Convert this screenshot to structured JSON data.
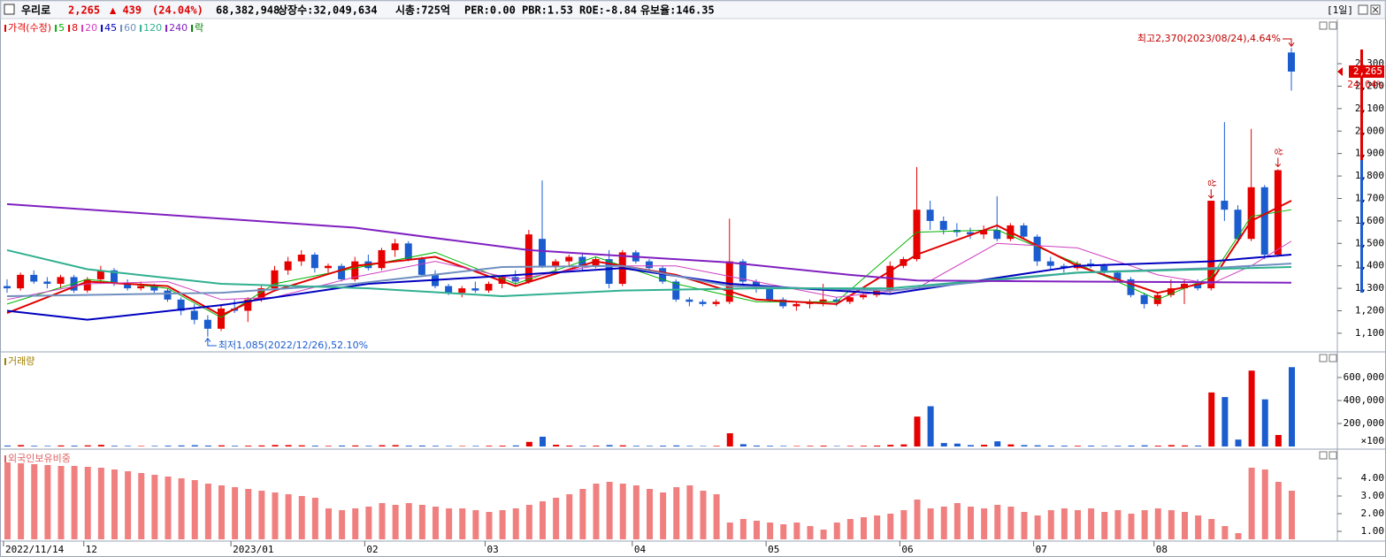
{
  "header": {
    "name": "우리로",
    "price": "2,265",
    "change": "▲ 439",
    "change_pct": "(24.04%)",
    "volume": "68,382,948",
    "listed": "상장수:32,049,634",
    "market_cap": "시총:725억",
    "per": "PER:0.00",
    "pbr": "PBR:1.53",
    "roe": "ROE:-8.84",
    "reserve": "유보율:146.35",
    "period": "[1일]",
    "change_pct_tag": "24.04%"
  },
  "chart_data": [
    {
      "type": "candlestick",
      "price_name": "가격(수정)",
      "rights_label": "락",
      "up_color": "#e60000",
      "down_color": "#1b5ccf",
      "categories": [
        "2022/11/14",
        null,
        null,
        null,
        null,
        null,
        "12",
        null,
        null,
        null,
        null,
        null,
        null,
        null,
        null,
        null,
        null,
        "2023/01",
        null,
        null,
        null,
        null,
        null,
        null,
        null,
        null,
        null,
        "02",
        null,
        null,
        null,
        null,
        null,
        null,
        null,
        null,
        "03",
        null,
        null,
        null,
        null,
        null,
        null,
        null,
        null,
        null,
        null,
        "04",
        null,
        null,
        null,
        null,
        null,
        null,
        null,
        null,
        null,
        "05",
        null,
        null,
        null,
        null,
        null,
        null,
        null,
        null,
        null,
        "06",
        null,
        null,
        null,
        null,
        null,
        null,
        null,
        null,
        null,
        "07",
        null,
        null,
        null,
        null,
        null,
        null,
        null,
        null,
        "08",
        null,
        null,
        null,
        null,
        null,
        null,
        null,
        null,
        null,
        null
      ],
      "candles": [
        [
          1310,
          1340,
          1280,
          1300
        ],
        [
          1300,
          1370,
          1290,
          1360
        ],
        [
          1360,
          1380,
          1320,
          1330
        ],
        [
          1330,
          1350,
          1300,
          1320
        ],
        [
          1320,
          1360,
          1300,
          1350
        ],
        [
          1350,
          1360,
          1280,
          1290
        ],
        [
          1290,
          1350,
          1280,
          1340
        ],
        [
          1340,
          1400,
          1330,
          1380
        ],
        [
          1380,
          1390,
          1310,
          1320
        ],
        [
          1320,
          1340,
          1290,
          1300
        ],
        [
          1300,
          1330,
          1290,
          1310
        ],
        [
          1310,
          1320,
          1280,
          1290
        ],
        [
          1290,
          1300,
          1240,
          1250
        ],
        [
          1250,
          1260,
          1180,
          1200
        ],
        [
          1200,
          1230,
          1140,
          1160
        ],
        [
          1160,
          1180,
          1085,
          1120
        ],
        [
          1120,
          1230,
          1110,
          1210
        ],
        [
          1210,
          1250,
          1190,
          1200
        ],
        [
          1200,
          1260,
          1150,
          1250
        ],
        [
          1250,
          1310,
          1240,
          1300
        ],
        [
          1300,
          1400,
          1290,
          1380
        ],
        [
          1380,
          1440,
          1360,
          1420
        ],
        [
          1420,
          1470,
          1400,
          1450
        ],
        [
          1450,
          1460,
          1370,
          1390
        ],
        [
          1390,
          1410,
          1370,
          1400
        ],
        [
          1400,
          1410,
          1330,
          1340
        ],
        [
          1340,
          1440,
          1330,
          1420
        ],
        [
          1420,
          1450,
          1380,
          1390
        ],
        [
          1390,
          1480,
          1380,
          1470
        ],
        [
          1470,
          1520,
          1440,
          1500
        ],
        [
          1500,
          1510,
          1420,
          1430
        ],
        [
          1430,
          1440,
          1350,
          1360
        ],
        [
          1360,
          1380,
          1300,
          1310
        ],
        [
          1310,
          1320,
          1270,
          1280
        ],
        [
          1280,
          1310,
          1260,
          1300
        ],
        [
          1300,
          1330,
          1280,
          1290
        ],
        [
          1290,
          1330,
          1280,
          1320
        ],
        [
          1320,
          1360,
          1300,
          1350
        ],
        [
          1350,
          1380,
          1310,
          1330
        ],
        [
          1330,
          1560,
          1320,
          1540
        ],
        [
          1520,
          1780,
          1390,
          1400
        ],
        [
          1400,
          1430,
          1360,
          1420
        ],
        [
          1420,
          1450,
          1400,
          1440
        ],
        [
          1440,
          1460,
          1380,
          1400
        ],
        [
          1400,
          1440,
          1390,
          1430
        ],
        [
          1430,
          1470,
          1300,
          1320
        ],
        [
          1320,
          1470,
          1310,
          1460
        ],
        [
          1460,
          1470,
          1410,
          1420
        ],
        [
          1420,
          1430,
          1380,
          1390
        ],
        [
          1390,
          1400,
          1320,
          1330
        ],
        [
          1330,
          1340,
          1240,
          1250
        ],
        [
          1250,
          1260,
          1220,
          1240
        ],
        [
          1240,
          1250,
          1220,
          1230
        ],
        [
          1230,
          1250,
          1220,
          1240
        ],
        [
          1240,
          1610,
          1230,
          1420
        ],
        [
          1420,
          1430,
          1320,
          1330
        ],
        [
          1330,
          1340,
          1280,
          1300
        ],
        [
          1300,
          1310,
          1240,
          1250
        ],
        [
          1250,
          1260,
          1210,
          1220
        ],
        [
          1220,
          1240,
          1200,
          1230
        ],
        [
          1230,
          1250,
          1210,
          1240
        ],
        [
          1240,
          1320,
          1220,
          1250
        ],
        [
          1250,
          1260,
          1220,
          1240
        ],
        [
          1240,
          1270,
          1230,
          1260
        ],
        [
          1260,
          1280,
          1250,
          1270
        ],
        [
          1270,
          1300,
          1260,
          1290
        ],
        [
          1290,
          1420,
          1280,
          1400
        ],
        [
          1400,
          1440,
          1390,
          1430
        ],
        [
          1430,
          1840,
          1420,
          1650
        ],
        [
          1650,
          1690,
          1560,
          1600
        ],
        [
          1600,
          1620,
          1540,
          1560
        ],
        [
          1560,
          1590,
          1530,
          1550
        ],
        [
          1550,
          1570,
          1520,
          1540
        ],
        [
          1540,
          1580,
          1520,
          1560
        ],
        [
          1560,
          1710,
          1510,
          1520
        ],
        [
          1520,
          1590,
          1510,
          1580
        ],
        [
          1580,
          1590,
          1520,
          1530
        ],
        [
          1530,
          1540,
          1400,
          1420
        ],
        [
          1420,
          1440,
          1380,
          1400
        ],
        [
          1400,
          1410,
          1370,
          1390
        ],
        [
          1390,
          1420,
          1380,
          1410
        ],
        [
          1410,
          1430,
          1390,
          1400
        ],
        [
          1400,
          1410,
          1360,
          1370
        ],
        [
          1370,
          1380,
          1330,
          1340
        ],
        [
          1340,
          1350,
          1260,
          1270
        ],
        [
          1270,
          1280,
          1210,
          1230
        ],
        [
          1230,
          1280,
          1220,
          1270
        ],
        [
          1270,
          1340,
          1260,
          1300
        ],
        [
          1300,
          1340,
          1230,
          1320
        ],
        [
          1320,
          1340,
          1290,
          1300
        ],
        [
          1300,
          1690,
          1290,
          1690
        ],
        [
          1690,
          2040,
          1600,
          1650
        ],
        [
          1650,
          1670,
          1500,
          1520
        ],
        [
          1520,
          2010,
          1510,
          1750
        ],
        [
          1750,
          1760,
          1430,
          1450
        ],
        [
          1450,
          1830,
          1440,
          1826
        ],
        [
          2350,
          2370,
          2180,
          2265
        ]
      ],
      "series": [
        {
          "name": "5",
          "color": "#00b400",
          "width": 1,
          "x": [
            0,
            6,
            12,
            16,
            20,
            26,
            32,
            38,
            44,
            50,
            56,
            62,
            68,
            74,
            80,
            86,
            90,
            93,
            96
          ],
          "values": [
            1230,
            1340,
            1300,
            1170,
            1320,
            1390,
            1460,
            1320,
            1440,
            1320,
            1240,
            1240,
            1550,
            1560,
            1410,
            1250,
            1350,
            1620,
            1650
          ]
        },
        {
          "name": "8",
          "color": "#e00000",
          "width": 2,
          "x": [
            0,
            6,
            12,
            16,
            20,
            26,
            32,
            38,
            44,
            50,
            56,
            62,
            68,
            74,
            80,
            86,
            90,
            93,
            96
          ],
          "values": [
            1190,
            1330,
            1310,
            1180,
            1290,
            1400,
            1440,
            1310,
            1420,
            1360,
            1250,
            1230,
            1450,
            1580,
            1400,
            1280,
            1330,
            1600,
            1690
          ]
        },
        {
          "name": "20",
          "color": "#d040c0",
          "width": 1,
          "x": [
            0,
            6,
            12,
            16,
            20,
            26,
            32,
            38,
            44,
            50,
            56,
            62,
            68,
            74,
            80,
            86,
            90,
            93,
            96
          ],
          "values": [
            1250,
            1320,
            1330,
            1250,
            1260,
            1350,
            1420,
            1340,
            1400,
            1400,
            1330,
            1260,
            1300,
            1500,
            1480,
            1360,
            1320,
            1400,
            1510
          ]
        },
        {
          "name": "45",
          "color": "#0000c0",
          "width": 2,
          "x": [
            0,
            6,
            16,
            27,
            37,
            46,
            54,
            66,
            80,
            90,
            96
          ],
          "values": [
            1200,
            1160,
            1225,
            1320,
            1355,
            1390,
            1320,
            1275,
            1400,
            1420,
            1450
          ]
        },
        {
          "name": "60",
          "color": "#7090c0",
          "width": 2,
          "x": [
            0,
            16,
            26,
            37,
            46,
            54,
            66,
            80,
            90,
            96
          ],
          "values": [
            1265,
            1280,
            1320,
            1395,
            1400,
            1310,
            1290,
            1370,
            1390,
            1410
          ]
        },
        {
          "name": "120",
          "color": "#30b090",
          "width": 2,
          "x": [
            0,
            6,
            16,
            27,
            37,
            46,
            56,
            66,
            80,
            96
          ],
          "values": [
            1470,
            1385,
            1320,
            1300,
            1265,
            1290,
            1300,
            1300,
            1370,
            1395
          ]
        },
        {
          "name": "240",
          "color": "#8020c0",
          "width": 2,
          "x": [
            0,
            26,
            39,
            54,
            63,
            68,
            80,
            96
          ],
          "values": [
            1675,
            1570,
            1470,
            1415,
            1360,
            1335,
            1330,
            1325
          ]
        }
      ],
      "ylim": [
        1017,
        2497
      ],
      "yticks": [
        {
          "value": 1100,
          "label": "1,100"
        },
        {
          "value": 1200,
          "label": "1,200"
        },
        {
          "value": 1300,
          "label": "1,300"
        },
        {
          "value": 1400,
          "label": "1,400"
        },
        {
          "value": 1500,
          "label": "1,500"
        },
        {
          "value": 1600,
          "label": "1,600"
        },
        {
          "value": 1700,
          "label": "1,700"
        },
        {
          "value": 1800,
          "label": "1,800"
        },
        {
          "value": 1900,
          "label": "1,900"
        },
        {
          "value": 2000,
          "label": "2,000"
        },
        {
          "value": 2100,
          "label": "2,100"
        },
        {
          "value": 2200,
          "label": "2,200"
        },
        {
          "value": 2300,
          "label": "2,300"
        }
      ],
      "annotations": [
        {
          "index": 96,
          "value": 2370,
          "label": "최고2,370(2023/08/24),4.64%"
        },
        {
          "index": 15,
          "value": 1085,
          "label": "최저1,085(2022/12/26),52.10%"
        }
      ],
      "limit_up_marks": [
        {
          "index": 90,
          "label": "상"
        },
        {
          "index": 95,
          "label": "상"
        }
      ]
    },
    {
      "type": "bar",
      "title": "거래량",
      "values": [
        8000,
        12000,
        6000,
        5000,
        9000,
        7000,
        10000,
        14000,
        6000,
        5000,
        4000,
        5000,
        7000,
        9000,
        11000,
        8000,
        10000,
        6000,
        7000,
        9000,
        13000,
        12000,
        10000,
        7000,
        5000,
        8000,
        9000,
        6000,
        11000,
        12000,
        7000,
        8000,
        6000,
        5000,
        4000,
        5000,
        6000,
        7000,
        9000,
        40000,
        85000,
        15000,
        8000,
        6000,
        7000,
        12000,
        10000,
        6000,
        5000,
        7000,
        9000,
        5000,
        4000,
        5000,
        115000,
        20000,
        8000,
        6000,
        5000,
        4000,
        5000,
        7000,
        4000,
        5000,
        6000,
        8000,
        14000,
        18000,
        260000,
        350000,
        30000,
        25000,
        12000,
        15000,
        45000,
        18000,
        12000,
        10000,
        8000,
        7000,
        6000,
        7000,
        5000,
        6000,
        8000,
        10000,
        7000,
        12000,
        9000,
        8000,
        470000,
        430000,
        60000,
        660000,
        410000,
        100000,
        690000
      ],
      "ylim": [
        0,
        746000
      ],
      "yticks": [
        {
          "value": 200000,
          "label": "200,000"
        },
        {
          "value": 400000,
          "label": "400,000"
        },
        {
          "value": 600000,
          "label": "600,000"
        }
      ],
      "unit_label": "×100"
    },
    {
      "type": "bar",
      "title": "외국인보유비중",
      "color": "#f08080",
      "values": [
        4.9,
        4.85,
        4.8,
        4.75,
        4.7,
        4.7,
        4.65,
        4.6,
        4.5,
        4.4,
        4.3,
        4.2,
        4.1,
        4.0,
        3.9,
        3.7,
        3.6,
        3.5,
        3.4,
        3.3,
        3.2,
        3.1,
        3.0,
        2.9,
        2.3,
        2.2,
        2.3,
        2.4,
        2.6,
        2.5,
        2.6,
        2.5,
        2.4,
        2.3,
        2.3,
        2.2,
        2.1,
        2.2,
        2.3,
        2.5,
        2.7,
        2.9,
        3.1,
        3.4,
        3.7,
        3.8,
        3.7,
        3.6,
        3.4,
        3.2,
        3.5,
        3.6,
        3.3,
        3.1,
        1.5,
        1.7,
        1.6,
        1.5,
        1.4,
        1.5,
        1.3,
        1.1,
        1.5,
        1.7,
        1.8,
        1.9,
        2.0,
        2.2,
        2.8,
        2.3,
        2.4,
        2.6,
        2.4,
        2.3,
        2.5,
        2.4,
        2.1,
        1.9,
        2.2,
        2.3,
        2.2,
        2.3,
        2.1,
        2.2,
        2.0,
        2.2,
        2.3,
        2.2,
        2.1,
        1.9,
        1.7,
        1.3,
        0.9,
        4.6,
        4.5,
        3.8,
        3.3
      ],
      "ylim": [
        0.55,
        5.05
      ],
      "yticks": [
        {
          "value": 1,
          "label": "1.00"
        },
        {
          "value": 2,
          "label": "2.00"
        },
        {
          "value": 3,
          "label": "3.00"
        },
        {
          "value": 4,
          "label": "4.00"
        }
      ]
    }
  ]
}
